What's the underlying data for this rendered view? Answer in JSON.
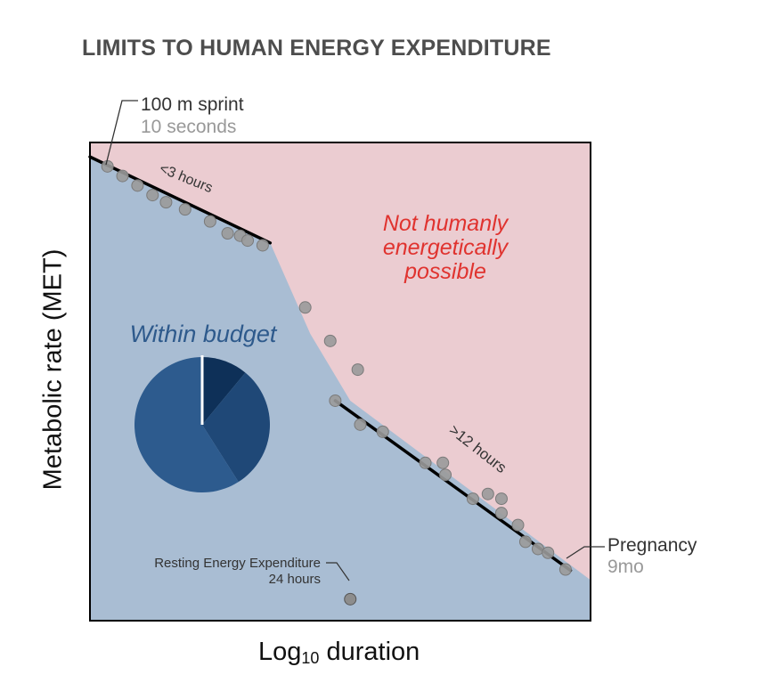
{
  "chart_data": {
    "type": "scatter",
    "title": "LIMITS TO HUMAN ENERGY EXPENDITURE",
    "xlabel": {
      "prefix": "Log",
      "subscript": "10",
      "suffix": " duration"
    },
    "ylabel": "Metabolic rate (MET)",
    "grid": false,
    "colors": {
      "possible_region": "#a9bdd3",
      "impossible_region": "#ebccd1",
      "point_fill": "#9a9a9a",
      "point_stroke": "#7a7a7a",
      "trend_line": "#000000",
      "region_label_red": "#e0332f",
      "region_label_blue": "#2e5a8c",
      "pie_colors": [
        "#0e3058",
        "#1f4877",
        "#2d5b8e"
      ]
    },
    "regions": {
      "impossible_label": [
        "Not humanly",
        "energetically",
        "possible"
      ],
      "possible_label": "Within budget"
    },
    "segment_labels": {
      "short": "<3 hours",
      "long": ">12 hours"
    },
    "annotations": {
      "sprint": {
        "label": "100 m sprint",
        "sublabel": "10 seconds"
      },
      "pregnancy": {
        "label": "Pregnancy",
        "sublabel": "9mo"
      },
      "resting": {
        "label": "Resting Energy Expenditure",
        "sublabel": "24 hours"
      }
    },
    "pie": {
      "slices": [
        0.11,
        0.3,
        0.59
      ]
    },
    "series": [
      {
        "points": [
          [
            0.035,
            0.95
          ],
          [
            0.065,
            0.93
          ],
          [
            0.095,
            0.91
          ],
          [
            0.125,
            0.89
          ],
          [
            0.152,
            0.875
          ],
          [
            0.19,
            0.86
          ],
          [
            0.24,
            0.835
          ],
          [
            0.275,
            0.81
          ],
          [
            0.3,
            0.805
          ],
          [
            0.315,
            0.795
          ],
          [
            0.345,
            0.785
          ],
          [
            0.43,
            0.655
          ],
          [
            0.48,
            0.585
          ],
          [
            0.49,
            0.46
          ],
          [
            0.535,
            0.525
          ],
          [
            0.54,
            0.41
          ],
          [
            0.585,
            0.395
          ],
          [
            0.67,
            0.33
          ],
          [
            0.705,
            0.33
          ],
          [
            0.71,
            0.305
          ],
          [
            0.765,
            0.255
          ],
          [
            0.795,
            0.265
          ],
          [
            0.822,
            0.255
          ],
          [
            0.822,
            0.225
          ],
          [
            0.855,
            0.2
          ],
          [
            0.87,
            0.165
          ],
          [
            0.895,
            0.15
          ],
          [
            0.915,
            0.142
          ],
          [
            0.95,
            0.107
          ]
        ]
      }
    ],
    "resting_point": [
      0.52,
      0.045
    ],
    "trend_lines": [
      {
        "from": [
          0.0,
          0.97
        ],
        "to": [
          0.36,
          0.79
        ]
      },
      {
        "from": [
          0.49,
          0.46
        ],
        "to": [
          0.96,
          0.105
        ]
      }
    ],
    "boundary": [
      [
        0.0,
        0.97
      ],
      [
        0.36,
        0.79
      ],
      [
        0.44,
        0.6
      ],
      [
        0.52,
        0.46
      ],
      [
        1.0,
        0.085
      ]
    ]
  }
}
